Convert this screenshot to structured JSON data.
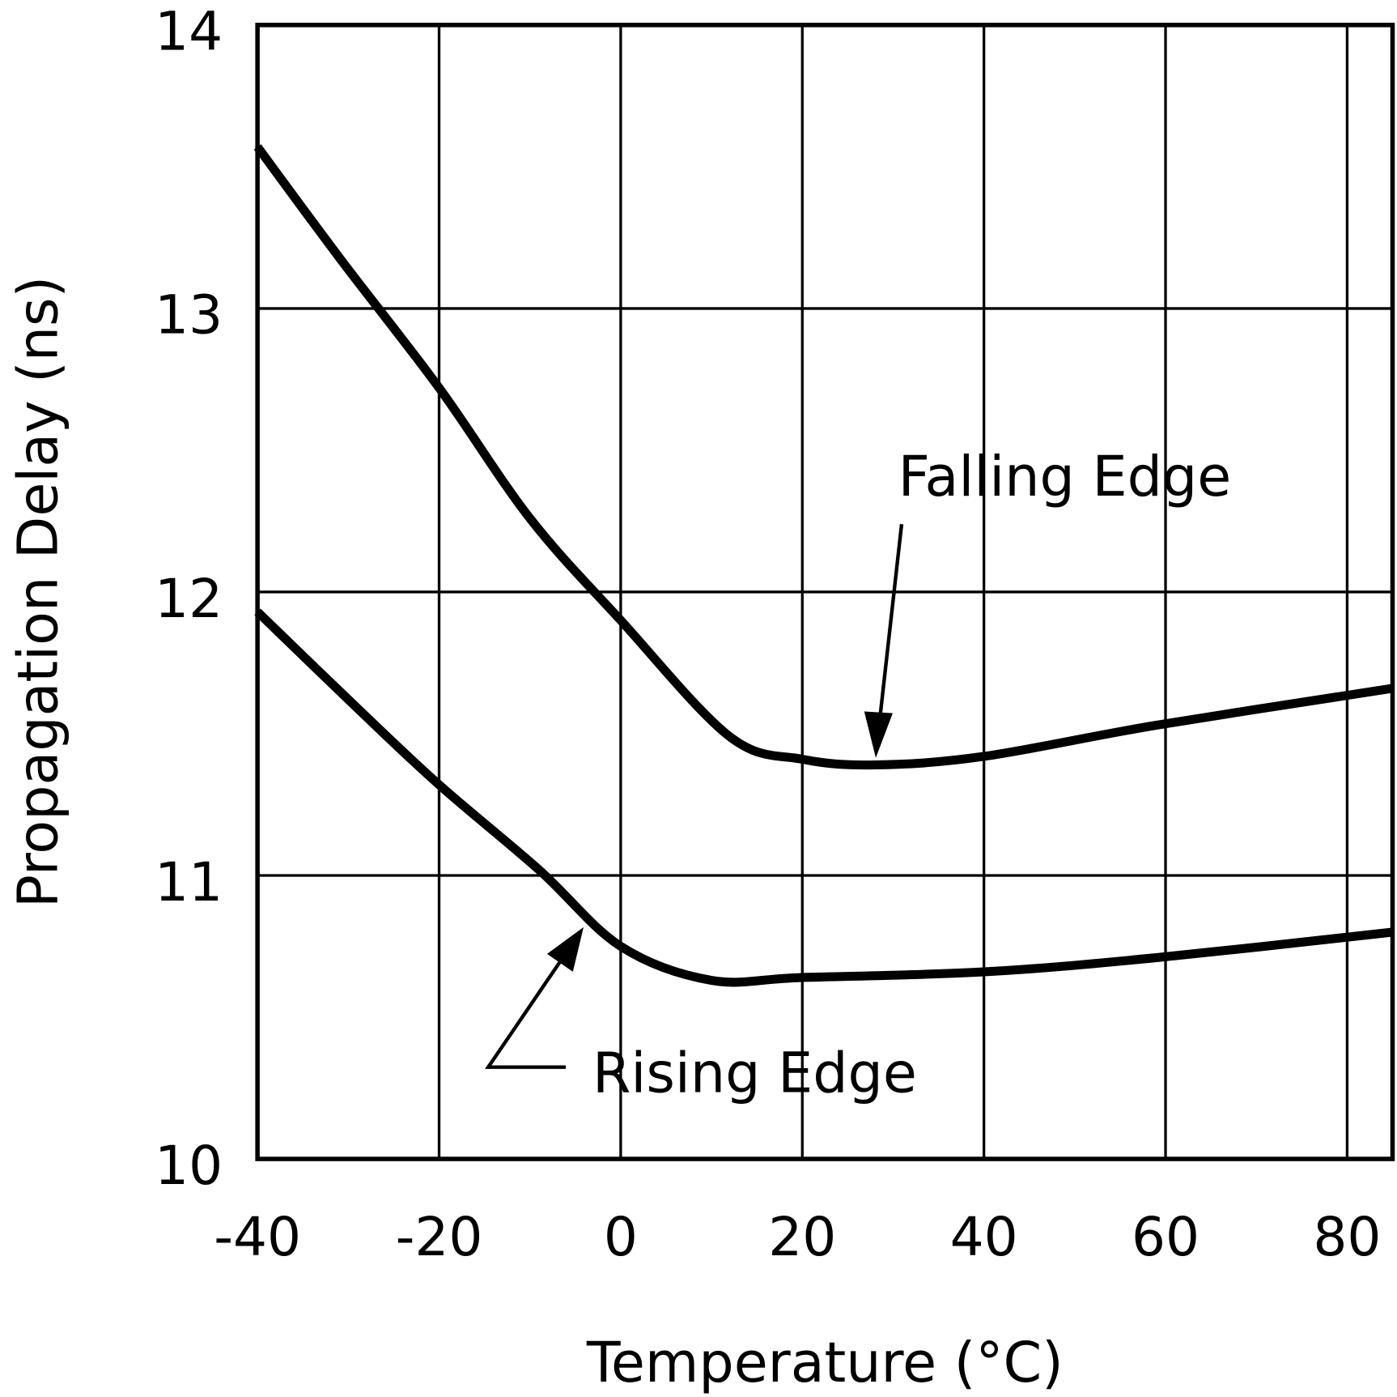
{
  "chart_data": {
    "type": "line",
    "title": "",
    "xlabel": "Temperature (°C)",
    "ylabel": "Propagation Delay (ns)",
    "xlim": [
      -40,
      85
    ],
    "ylim": [
      10,
      14
    ],
    "xticks": [
      -40,
      -20,
      0,
      20,
      40,
      60,
      80
    ],
    "xtick_labels": [
      "-40",
      "-20",
      "0",
      "20",
      "40",
      "60",
      "80"
    ],
    "yticks": [
      10,
      11,
      12,
      13,
      14
    ],
    "ytick_labels": [
      "10",
      "11",
      "12",
      "13",
      "14"
    ],
    "grid": true,
    "line_color": "#000000",
    "series": [
      {
        "name": "Falling Edge",
        "x": [
          -40,
          -31,
          -20,
          -10,
          0,
          12,
          20,
          28,
          40,
          59,
          85
        ],
        "y": [
          13.57,
          13.18,
          12.72,
          12.26,
          11.9,
          11.49,
          11.41,
          11.39,
          11.42,
          11.53,
          11.66
        ]
      },
      {
        "name": "Rising Edge",
        "x": [
          -40,
          -29,
          -20,
          -9,
          0,
          10,
          20,
          40,
          59,
          85
        ],
        "y": [
          11.93,
          11.59,
          11.32,
          11.02,
          10.75,
          10.63,
          10.64,
          10.66,
          10.71,
          10.8
        ]
      }
    ],
    "annotations": [
      {
        "text": "Falling Edge",
        "points_to": [
          28,
          11.39
        ]
      },
      {
        "text": "Rising Edge",
        "points_to": [
          -5,
          10.88
        ]
      }
    ]
  }
}
